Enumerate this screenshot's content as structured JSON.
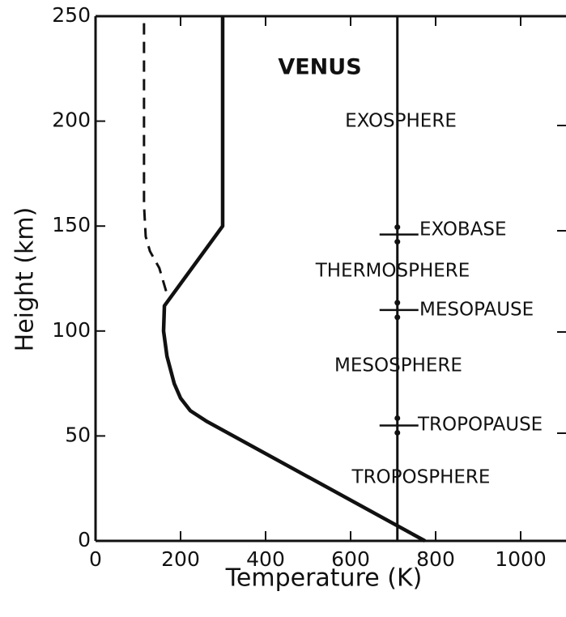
{
  "chart_data": {
    "type": "line",
    "title": "VENUS",
    "x_label": "Temperature (K)",
    "y_label": "Height (km)",
    "xlim": [
      0,
      1100
    ],
    "ylim": [
      0,
      250
    ],
    "xticks": [
      0,
      200,
      400,
      600,
      800,
      1000
    ],
    "yticks": [
      0,
      50,
      100,
      150,
      200,
      250
    ],
    "series": [
      {
        "style": "solid",
        "color": "#111111",
        "x": [
          775,
          261,
          223,
          200,
          185,
          168,
          160,
          162,
          299,
          299
        ],
        "values": [
          0,
          57,
          62,
          68,
          75,
          88,
          100,
          112,
          150,
          250
        ]
      },
      {
        "style": "dashed",
        "color": "#111111",
        "x": [
          166,
          150,
          128,
          118,
          114,
          114
        ],
        "values": [
          119,
          130,
          138,
          145,
          160,
          250
        ]
      }
    ],
    "reference_line": {
      "x": 710,
      "boundaries": [
        146,
        110,
        55
      ]
    },
    "annotations": [
      "EXOSPHERE",
      "EXOBASE",
      "THERMOSPHERE",
      "MESOPAUSE",
      "MESOSPHERE",
      "TROPOPAUSE",
      "TROPOSPHERE"
    ]
  }
}
